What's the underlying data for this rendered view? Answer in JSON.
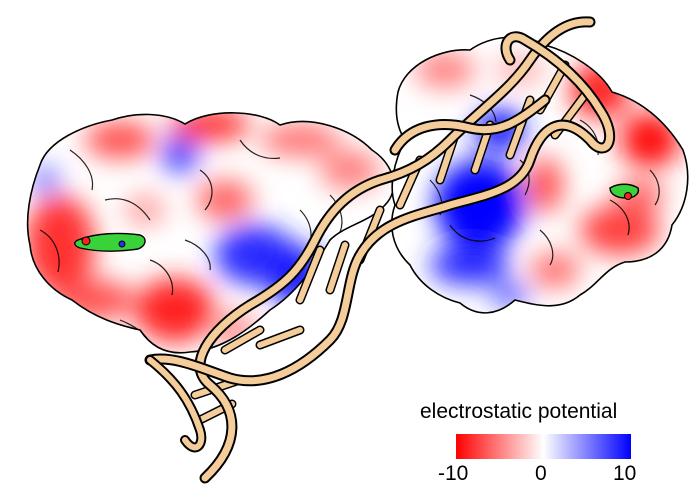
{
  "legend": {
    "title": "electrostatic potential",
    "ticks": {
      "min": "-10",
      "mid": "0",
      "max": "10"
    },
    "scale": {
      "min": -10,
      "mid": 0,
      "max": 10
    },
    "colors": {
      "negative": "#ff0000",
      "neutral": "#ffffff",
      "positive": "#0000ff"
    }
  },
  "colors": {
    "dna_backbone": "#f5cd9a",
    "ligand": "#3ad23a",
    "outline": "#000000"
  }
}
